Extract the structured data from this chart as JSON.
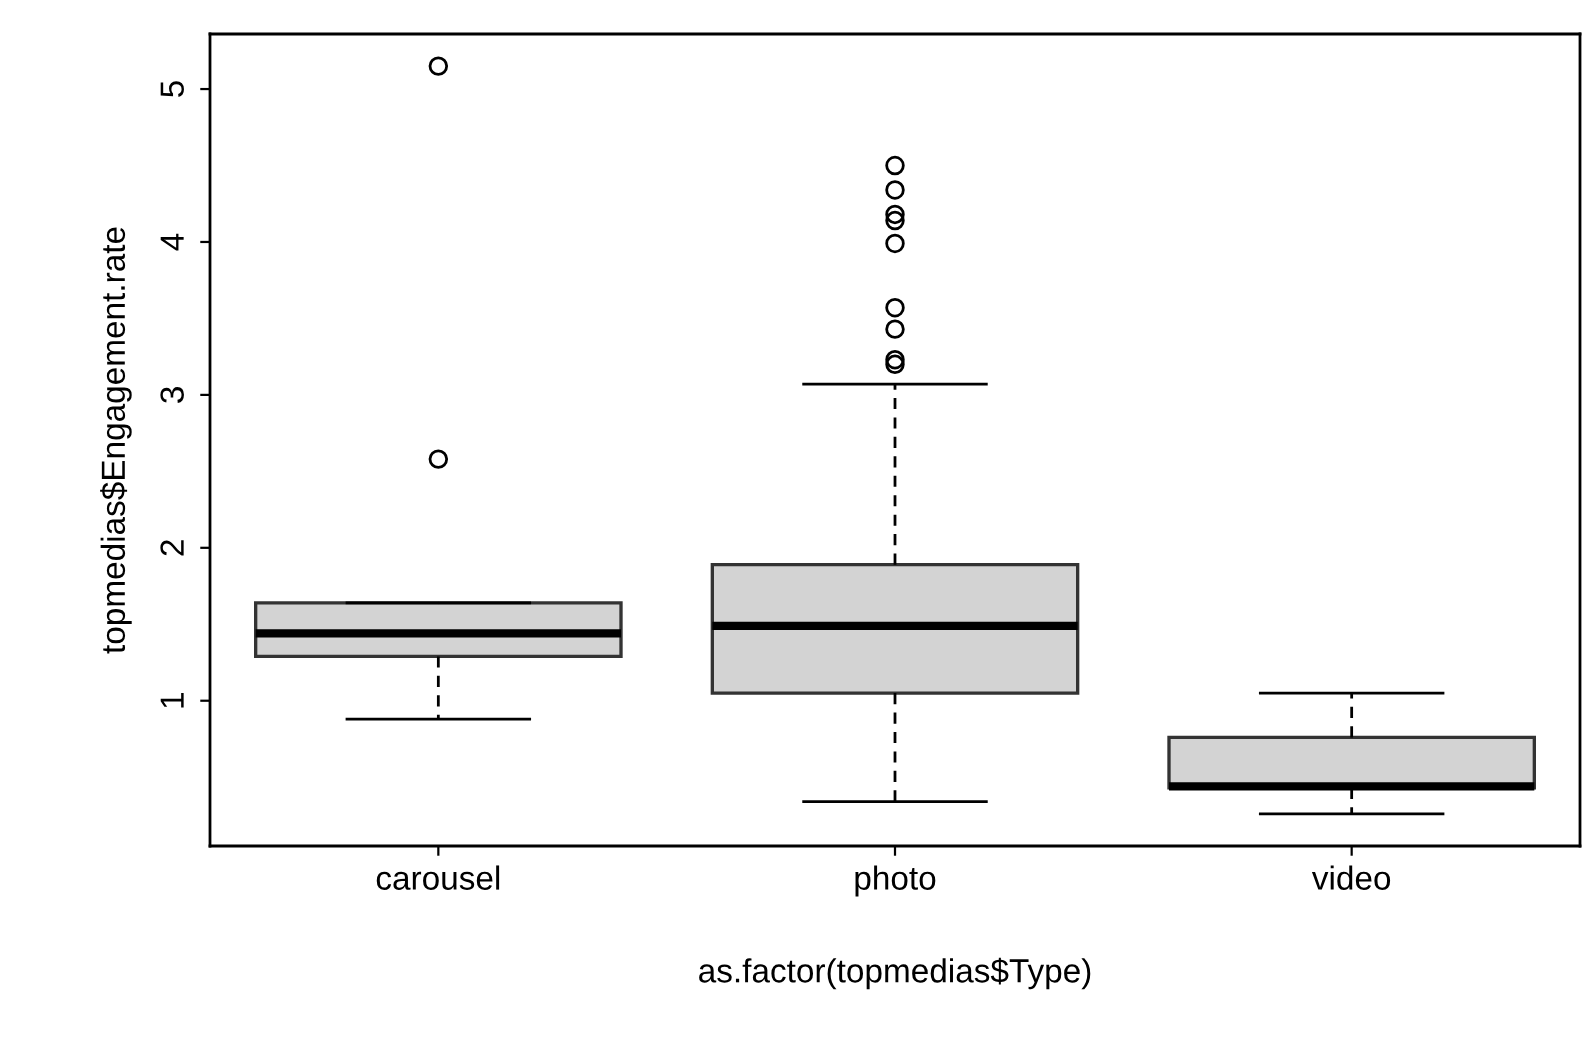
{
  "chart_data": {
    "type": "box",
    "xlabel": "as.factor(topmedias$Type)",
    "ylabel": "topmedias$Engagement.rate",
    "categories": [
      "carousel",
      "photo",
      "video"
    ],
    "color": "#d3d3d3",
    "boxes": [
      {
        "low": 0.88,
        "q1": 1.29,
        "median": 1.44,
        "q3": 1.64,
        "high": 1.64,
        "outliers": [
          5.15,
          2.58
        ]
      },
      {
        "low": 0.34,
        "q1": 1.05,
        "median": 1.49,
        "q3": 1.89,
        "high": 3.07,
        "outliers": [
          4.5,
          4.34,
          4.18,
          4.14,
          3.99,
          3.57,
          3.43,
          3.23,
          3.2
        ]
      },
      {
        "low": 0.26,
        "q1": 0.43,
        "median": 0.44,
        "q3": 0.76,
        "high": 1.05
      }
    ],
    "ylim": [
      0.05,
      5.36
    ],
    "yticks": [
      1,
      2,
      3,
      4,
      5
    ],
    "grid": false
  }
}
